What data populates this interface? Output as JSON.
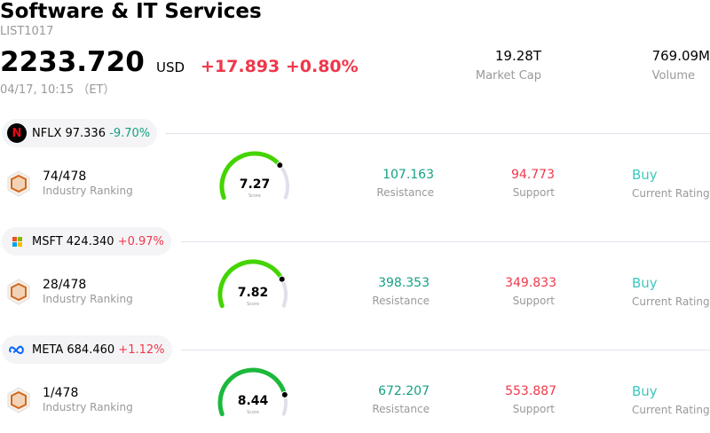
{
  "header": {
    "title": "Software & IT Services",
    "code": "LIST1017",
    "price": "2233.720",
    "currency": "USD",
    "change": "+17.893 +0.80%",
    "time": "04/17, 10:15 （ET）",
    "market_cap": "19.28T",
    "market_cap_label": "Market Cap",
    "volume": "769.09M",
    "volume_label": "Volume"
  },
  "stocks": [
    {
      "ticker": "NFLX 97.336",
      "change": "-9.70%",
      "change_color": "#14a085",
      "logo": "netflix-icon",
      "rank": "74/478",
      "rank_label": "Industry Ranking",
      "score": "7.27",
      "score_value": 7.27,
      "score_label": "Score",
      "gauge_color": "#44d400",
      "resistance": "107.163",
      "resistance_label": "Resistance",
      "support": "94.773",
      "support_label": "Support",
      "rating": "Buy",
      "rating_label": "Current Rating"
    },
    {
      "ticker": "MSFT 424.340",
      "change": "+0.97%",
      "change_color": "#f0384b",
      "logo": "microsoft-icon",
      "rank": "28/478",
      "rank_label": "Industry Ranking",
      "score": "7.82",
      "score_value": 7.82,
      "score_label": "Score",
      "gauge_color": "#44d400",
      "resistance": "398.353",
      "resistance_label": "Resistance",
      "support": "349.833",
      "support_label": "Support",
      "rating": "Buy",
      "rating_label": "Current Rating"
    },
    {
      "ticker": "META 684.460",
      "change": "+1.12%",
      "change_color": "#f0384b",
      "logo": "meta-icon",
      "rank": "1/478",
      "rank_label": "Industry Ranking",
      "score": "8.44",
      "score_value": 8.44,
      "score_label": "Score",
      "gauge_color": "#1cb83c",
      "resistance": "672.207",
      "resistance_label": "Resistance",
      "support": "553.887",
      "support_label": "Support",
      "rating": "Buy",
      "rating_label": "Current Rating"
    }
  ]
}
